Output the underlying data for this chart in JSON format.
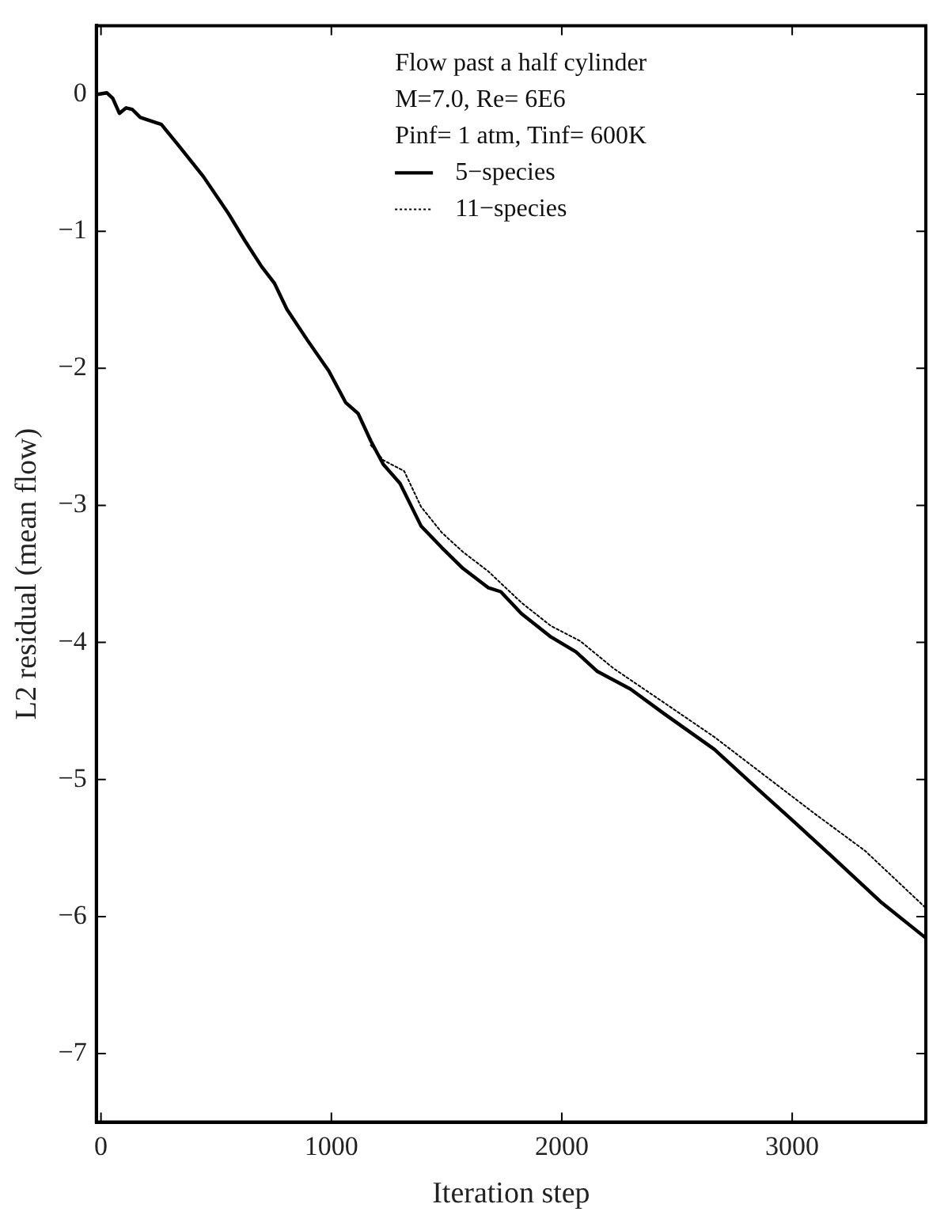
{
  "chart_data": {
    "type": "line",
    "xlabel": "Iteration step",
    "ylabel": "L2 residual (mean flow)",
    "annotations": [
      "Flow past a half cylinder",
      "M=7.0, Re= 6E6",
      "Pinf= 1 atm, Tinf= 600K"
    ],
    "xlim": [
      -20,
      3580
    ],
    "xticks": [
      0,
      1000,
      2000,
      3000
    ],
    "ylim": [
      -7.5,
      0.5
    ],
    "yticks": [
      0,
      -1,
      -2,
      -3,
      -4,
      -5,
      -6,
      -7
    ],
    "grid": false,
    "legend": "top right",
    "marker": "none",
    "series": [
      {
        "name": "5−species",
        "color": "#000000",
        "line_style": "solid",
        "x": [
          -10,
          25,
          51,
          80,
          109,
          135,
          171,
          225,
          262,
          335,
          444,
          553,
          625,
          698,
          753,
          807,
          898,
          989,
          1062,
          1116,
          1171,
          1225,
          1298,
          1389,
          1480,
          1571,
          1680,
          1735,
          1825,
          1953,
          2062,
          2153,
          2298,
          2444,
          2662,
          2844,
          2989,
          3171,
          3389,
          3575
        ],
        "values": [
          0,
          0.01,
          -0.03,
          -0.14,
          -0.1,
          -0.11,
          -0.17,
          -0.2,
          -0.22,
          -0.37,
          -0.6,
          -0.87,
          -1.07,
          -1.26,
          -1.38,
          -1.57,
          -1.8,
          -2.02,
          -2.25,
          -2.33,
          -2.53,
          -2.7,
          -2.84,
          -3.15,
          -3.31,
          -3.46,
          -3.6,
          -3.63,
          -3.79,
          -3.96,
          -4.07,
          -4.21,
          -4.34,
          -4.52,
          -4.78,
          -5.06,
          -5.28,
          -5.56,
          -5.9,
          -6.15
        ]
      },
      {
        "name": "11−species",
        "color": "#000000",
        "line_style": "dotted",
        "x": [
          1171,
          1225,
          1316,
          1389,
          1480,
          1571,
          1680,
          1825,
          1953,
          2080,
          2225,
          2444,
          2662,
          2880,
          3098,
          3316,
          3575
        ],
        "values": [
          -2.56,
          -2.67,
          -2.75,
          -3.01,
          -3.2,
          -3.34,
          -3.48,
          -3.71,
          -3.88,
          -3.99,
          -4.19,
          -4.44,
          -4.69,
          -4.97,
          -5.25,
          -5.52,
          -5.93
        ]
      }
    ]
  }
}
